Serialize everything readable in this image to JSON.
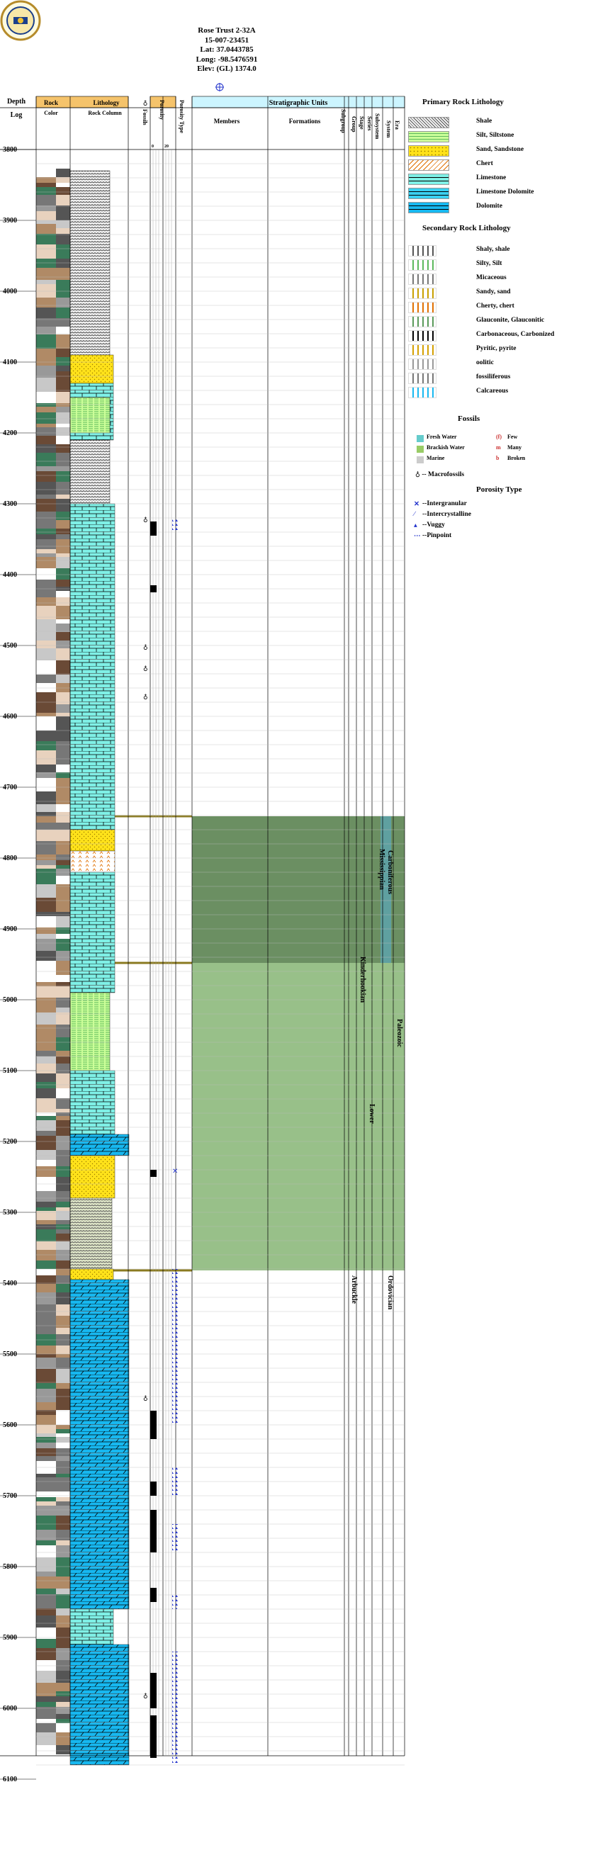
{
  "header": {
    "well_name": "Rose Trust 2-32A",
    "api": "15-007-23451",
    "lat": "Lat: 37.0443785",
    "long": "Long: -98.5476591",
    "elev": "Elev: (GL) 1374.0"
  },
  "columns": {
    "depth_line1": "Depth",
    "depth_line2": "Log",
    "rock": "Rock",
    "color": "Color",
    "lithology": "Lithology",
    "rock_column": "Rock Column",
    "fossils": "Fossils",
    "porosity": "Porosity",
    "porosity_type": "Porosity Type",
    "porosity_scale_0": "0",
    "porosity_scale_20": "20",
    "strat_units": "Stratigraphic Units",
    "members": "Members",
    "formations": "Formations",
    "subgroup": "Subgroup",
    "group": "Group",
    "stage": "Stage",
    "series": "Series",
    "subsystem": "Subsystem",
    "system": "System",
    "era": "Era"
  },
  "depth_ticks": [
    "3800",
    "3900",
    "4000",
    "4100",
    "4200",
    "4300",
    "4400",
    "4500",
    "4600",
    "4700",
    "4800",
    "4900",
    "5000",
    "5100",
    "5200",
    "5300",
    "5400",
    "5500",
    "5600",
    "5700",
    "5800",
    "5900",
    "6000",
    "6100"
  ],
  "strat_labels": {
    "carboniferous": "Carboniferous",
    "mississippian": "Mississippian",
    "kinderhookian": "Kinderhookian",
    "lower": "Lower",
    "paleozoic": "Paleozoic",
    "arbuckle": "Arbuckle",
    "ordovician": "Ordovician"
  },
  "legend": {
    "primary_title": "Primary Rock Lithology",
    "primary": [
      {
        "label": "Shale",
        "pattern": "shale"
      },
      {
        "label": "Silt, Siltstone",
        "pattern": "silt"
      },
      {
        "label": "Sand, Sandstone",
        "pattern": "sand"
      },
      {
        "label": "Chert",
        "pattern": "chert"
      },
      {
        "label": "Limestone",
        "pattern": "limestone"
      },
      {
        "label": "Limestone Dolomite",
        "pattern": "limedolo"
      },
      {
        "label": "Dolomite",
        "pattern": "dolomite"
      }
    ],
    "secondary_title": "Secondary Rock Lithology",
    "secondary": [
      "Shaly, shale",
      "Silty, Silt",
      "Micaceous",
      "Sandy, sand",
      "Cherty, chert",
      "Glauconite, Glauconitic",
      "Carbonaceous, Carbonized",
      "Pyritic, pyrite",
      "oolitic",
      "fossiliferous",
      "Calcareous"
    ],
    "fossils_title": "Fossils",
    "fossils_left": [
      {
        "label": "Fresh Water",
        "color": "#66cccc"
      },
      {
        "label": "Brackish Water",
        "color": "#99cc66"
      },
      {
        "label": "Marine",
        "color": "#cccccc"
      }
    ],
    "fossils_right": [
      {
        "label": "Few",
        "symbol": "(f)"
      },
      {
        "label": "Many",
        "symbol": "m"
      },
      {
        "label": "Broken",
        "symbol": "b"
      }
    ],
    "macrofossils": "-- Macrofossils",
    "porosity_title": "Porosity Type",
    "porosity": [
      "--Intergranular",
      "--Intercrystalline",
      "--Vuggy",
      "--Pinpoint"
    ]
  },
  "colors": {
    "header_orange": "#f5c36b",
    "header_cyan": "#ccf5ff",
    "mississippian_green": "#6b8f62",
    "kinderhook_green": "#98c089",
    "limestone": "#7ff0e6",
    "dolomite": "#17b8f0",
    "sand": "#ffe21a"
  }
}
